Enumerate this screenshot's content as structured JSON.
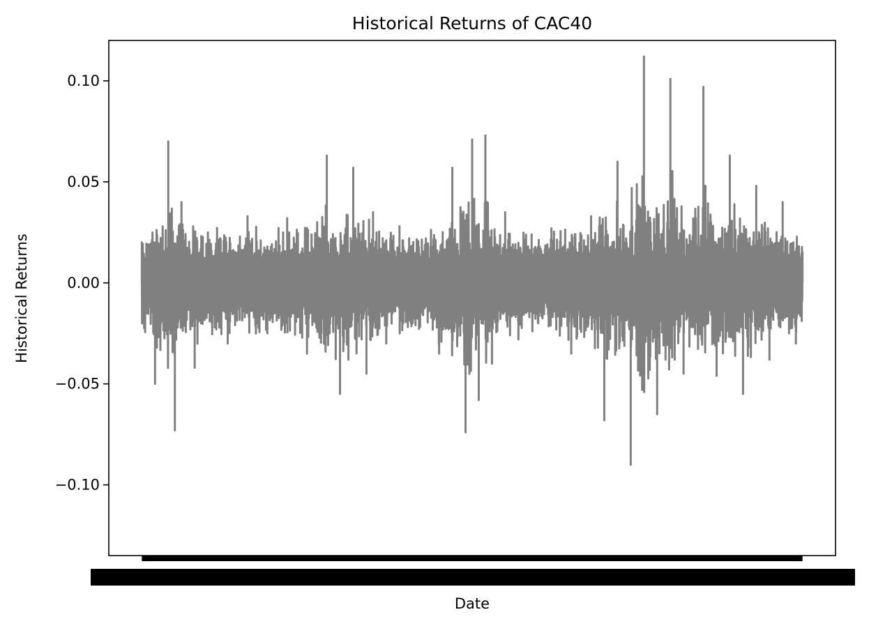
{
  "chart_data": {
    "type": "line",
    "title": "Historical Returns of CAC40",
    "xlabel": "Date",
    "ylabel": "Historical Returns",
    "ylim": [
      -0.135,
      0.12
    ],
    "yticks": [
      {
        "value": 0.1,
        "label": "0.10"
      },
      {
        "value": 0.05,
        "label": "0.05"
      },
      {
        "value": 0.0,
        "label": "0.00"
      },
      {
        "value": -0.05,
        "label": "−0.05"
      },
      {
        "value": -0.1,
        "label": "−0.10"
      }
    ],
    "xlim": [
      -0.05,
      1.05
    ],
    "x_ticks_note": "dense overlapping date tick labels render as a solid black band",
    "grid": false,
    "line_color": "#808080",
    "series": [
      {
        "x": [
          0.0,
          0.02,
          0.04,
          0.05,
          0.06,
          0.08,
          0.1,
          0.13,
          0.16,
          0.19,
          0.22,
          0.25,
          0.28,
          0.3,
          0.32,
          0.34,
          0.35,
          0.37,
          0.39,
          0.41,
          0.43,
          0.45,
          0.47,
          0.49,
          0.5,
          0.51,
          0.52,
          0.53,
          0.55,
          0.57,
          0.59,
          0.6,
          0.62,
          0.65,
          0.68,
          0.7,
          0.72,
          0.74,
          0.76,
          0.78,
          0.8,
          0.82,
          0.85,
          0.87,
          0.89,
          0.91,
          0.93,
          0.95,
          0.97,
          0.99,
          1.0
        ],
        "values": [
          0.02,
          -0.05,
          0.07,
          -0.073,
          0.04,
          -0.042,
          0.025,
          -0.03,
          0.033,
          -0.025,
          0.032,
          -0.035,
          0.063,
          -0.055,
          0.057,
          -0.045,
          0.035,
          -0.03,
          0.028,
          -0.02,
          0.022,
          -0.035,
          0.057,
          -0.074,
          0.071,
          -0.058,
          0.073,
          -0.04,
          0.035,
          -0.028,
          0.024,
          -0.02,
          0.027,
          -0.035,
          0.033,
          -0.068,
          0.06,
          -0.09,
          0.112,
          -0.065,
          0.101,
          -0.045,
          0.097,
          -0.046,
          0.063,
          -0.055,
          0.048,
          -0.038,
          0.04,
          -0.03,
          0.015
        ]
      }
    ]
  }
}
